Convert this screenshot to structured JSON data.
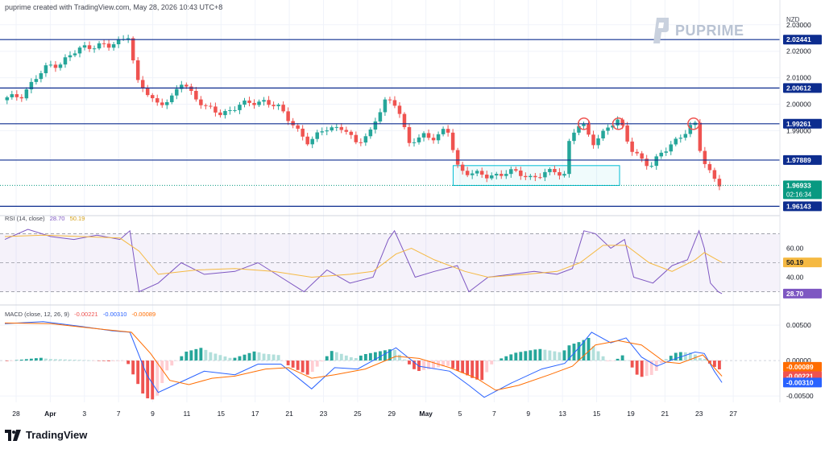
{
  "header": {
    "attribution": "puprime created with TradingView.com, May 28, 2026 10:43 UTC+8",
    "currency": "NZD"
  },
  "brand": {
    "name": "PUPRIME",
    "icon": "puprime-logo-icon"
  },
  "footer": {
    "name": "TradingView",
    "icon": "tradingview-logo-icon"
  },
  "colors": {
    "up": "#26a69a",
    "down": "#ef5350",
    "level_line": "#0d2d8f",
    "rsi_line": "#7e57c2",
    "rsi_ma": "#f5b942",
    "macd_line": "#2962ff",
    "signal_line": "#ff6d00",
    "box": "#00bcd4",
    "circle": "#ef5350",
    "last_price_bg": "#089981"
  },
  "chart_data": [
    {
      "type": "candlestick",
      "id": "price",
      "ylim": [
        1.9585,
        2.0345
      ],
      "y_ticks": [
        "2.03000",
        "2.02000",
        "2.01000",
        "2.00000",
        "1.99000"
      ],
      "y_tick_values": [
        2.03,
        2.02,
        2.01,
        2.0,
        1.99
      ],
      "x_ticks": [
        "28",
        "Apr",
        "3",
        "7",
        "9",
        "11",
        "15",
        "17",
        "21",
        "23",
        "25",
        "29",
        "May",
        "5",
        "7",
        "9",
        "13",
        "15",
        "19",
        "21",
        "23",
        "27"
      ],
      "levels": [
        {
          "value": 2.02441,
          "label": "2.02441"
        },
        {
          "value": 2.00612,
          "label": "2.00612"
        },
        {
          "value": 1.99261,
          "label": "1.99261"
        },
        {
          "value": 1.97889,
          "label": "1.97889"
        },
        {
          "value": 1.96143,
          "label": "1.96143"
        }
      ],
      "last_price": {
        "value": 1.96933,
        "label": "1.96933",
        "countdown": "02:16:34"
      },
      "consolidation_box": {
        "x_from": 0.5845,
        "x_to": 0.8015,
        "y_from": 1.9693,
        "y_to": 1.9768
      },
      "highlight_circles_at": [
        0.755,
        0.8,
        0.898
      ],
      "anchors": [
        [
          0,
          2.0015
        ],
        [
          0.025,
          2.0035
        ],
        [
          0.04,
          2.0085
        ],
        [
          0.06,
          2.0145
        ],
        [
          0.075,
          2.0155
        ],
        [
          0.09,
          2.0185
        ],
        [
          0.105,
          2.0215
        ],
        [
          0.125,
          2.0225
        ],
        [
          0.14,
          2.0215
        ],
        [
          0.16,
          2.0255
        ],
        [
          0.165,
          2.0265
        ],
        [
          0.175,
          2.0085
        ],
        [
          0.2,
          2.0005
        ],
        [
          0.22,
          2.0015
        ],
        [
          0.235,
          2.0085
        ],
        [
          0.265,
          1.9985
        ],
        [
          0.285,
          1.9965
        ],
        [
          0.31,
          1.9995
        ],
        [
          0.34,
          2.0015
        ],
        [
          0.36,
          1.9985
        ],
        [
          0.38,
          1.9925
        ],
        [
          0.4,
          1.9845
        ],
        [
          0.42,
          1.9915
        ],
        [
          0.445,
          1.9905
        ],
        [
          0.46,
          1.9855
        ],
        [
          0.48,
          1.9895
        ],
        [
          0.5,
          2.0015
        ],
        [
          0.515,
          2.0005
        ],
        [
          0.53,
          1.9845
        ],
        [
          0.55,
          1.9885
        ],
        [
          0.565,
          1.9875
        ],
        [
          0.58,
          1.9905
        ],
        [
          0.595,
          1.9755
        ],
        [
          0.63,
          1.9725
        ],
        [
          0.66,
          1.9745
        ],
        [
          0.69,
          1.9725
        ],
        [
          0.72,
          1.9745
        ],
        [
          0.735,
          1.9735
        ],
        [
          0.74,
          1.9885
        ],
        [
          0.755,
          1.9925
        ],
        [
          0.77,
          1.9855
        ],
        [
          0.79,
          1.9915
        ],
        [
          0.805,
          1.9935
        ],
        [
          0.82,
          1.9835
        ],
        [
          0.845,
          1.9755
        ],
        [
          0.86,
          1.9825
        ],
        [
          0.89,
          1.9885
        ],
        [
          0.903,
          1.9935
        ],
        [
          0.912,
          1.9805
        ],
        [
          0.925,
          1.9725
        ],
        [
          0.935,
          1.9693
        ]
      ]
    },
    {
      "type": "line",
      "id": "rsi",
      "label": "RSI (14, close)",
      "values_label": [
        "28.70",
        "50.19"
      ],
      "ylim": [
        22,
        78
      ],
      "y_ticks": [
        "60.00",
        "40.00"
      ],
      "y_tick_values": [
        60,
        40
      ],
      "bands": [
        70,
        50,
        30
      ],
      "current": [
        {
          "value": 50.19,
          "label": "50.19"
        },
        {
          "value": 28.7,
          "label": "28.70"
        }
      ],
      "series": [
        {
          "name": "RSI",
          "points": [
            [
              0,
              66
            ],
            [
              0.03,
              73
            ],
            [
              0.06,
              68
            ],
            [
              0.09,
              66
            ],
            [
              0.12,
              69
            ],
            [
              0.15,
              66
            ],
            [
              0.163,
              72
            ],
            [
              0.175,
              30
            ],
            [
              0.2,
              36
            ],
            [
              0.23,
              50
            ],
            [
              0.26,
              42
            ],
            [
              0.3,
              44
            ],
            [
              0.33,
              50
            ],
            [
              0.36,
              40
            ],
            [
              0.39,
              30
            ],
            [
              0.42,
              45
            ],
            [
              0.45,
              36
            ],
            [
              0.48,
              40
            ],
            [
              0.5,
              66
            ],
            [
              0.508,
              72
            ],
            [
              0.52,
              58
            ],
            [
              0.535,
              40
            ],
            [
              0.56,
              44
            ],
            [
              0.59,
              48
            ],
            [
              0.605,
              30
            ],
            [
              0.63,
              40
            ],
            [
              0.66,
              42
            ],
            [
              0.69,
              44
            ],
            [
              0.72,
              42
            ],
            [
              0.74,
              46
            ],
            [
              0.755,
              72
            ],
            [
              0.77,
              70
            ],
            [
              0.79,
              60
            ],
            [
              0.808,
              66
            ],
            [
              0.82,
              40
            ],
            [
              0.845,
              36
            ],
            [
              0.87,
              48
            ],
            [
              0.89,
              52
            ],
            [
              0.905,
              72
            ],
            [
              0.912,
              60
            ],
            [
              0.92,
              36
            ],
            [
              0.93,
              30
            ],
            [
              0.935,
              28.7
            ]
          ]
        },
        {
          "name": "RSI MA",
          "points": [
            [
              0,
              68
            ],
            [
              0.05,
              69
            ],
            [
              0.1,
              68
            ],
            [
              0.15,
              67
            ],
            [
              0.175,
              58
            ],
            [
              0.2,
              42
            ],
            [
              0.25,
              45
            ],
            [
              0.3,
              46
            ],
            [
              0.35,
              44
            ],
            [
              0.4,
              40
            ],
            [
              0.45,
              42
            ],
            [
              0.48,
              44
            ],
            [
              0.51,
              56
            ],
            [
              0.53,
              60
            ],
            [
              0.56,
              52
            ],
            [
              0.6,
              44
            ],
            [
              0.63,
              40
            ],
            [
              0.68,
              42
            ],
            [
              0.72,
              44
            ],
            [
              0.75,
              50
            ],
            [
              0.78,
              62
            ],
            [
              0.81,
              62
            ],
            [
              0.84,
              50
            ],
            [
              0.87,
              44
            ],
            [
              0.9,
              52
            ],
            [
              0.912,
              57
            ],
            [
              0.935,
              50.19
            ]
          ]
        }
      ]
    },
    {
      "type": "line",
      "id": "macd",
      "label": "MACD (close, 12, 26, 9)",
      "values_label": [
        "-0.00221",
        "-0.00310",
        "-0.00089"
      ],
      "ylim": [
        -0.0059,
        0.0066
      ],
      "y_ticks": [
        "0.00500",
        "0.00000",
        "-0.00500"
      ],
      "y_tick_values": [
        0.005,
        0.0,
        -0.005
      ],
      "current": [
        {
          "value": -0.00089,
          "label": "-0.00089"
        },
        {
          "value": -0.00221,
          "label": "-0.00221"
        },
        {
          "value": -0.0031,
          "label": "-0.00310"
        }
      ],
      "series": [
        {
          "name": "MACD",
          "points": [
            [
              0,
              0.0052
            ],
            [
              0.05,
              0.0055
            ],
            [
              0.1,
              0.0048
            ],
            [
              0.14,
              0.0042
            ],
            [
              0.163,
              0.004
            ],
            [
              0.185,
              -0.002
            ],
            [
              0.2,
              -0.0045
            ],
            [
              0.23,
              -0.003
            ],
            [
              0.26,
              -0.0015
            ],
            [
              0.3,
              -0.002
            ],
            [
              0.33,
              -0.0005
            ],
            [
              0.36,
              -0.0005
            ],
            [
              0.4,
              -0.004
            ],
            [
              0.43,
              -0.001
            ],
            [
              0.46,
              -0.0012
            ],
            [
              0.49,
              0.0006
            ],
            [
              0.51,
              0.0018
            ],
            [
              0.54,
              -0.0008
            ],
            [
              0.58,
              -0.0015
            ],
            [
              0.605,
              -0.0035
            ],
            [
              0.625,
              -0.0052
            ],
            [
              0.66,
              -0.0032
            ],
            [
              0.7,
              -0.0012
            ],
            [
              0.73,
              -0.0004
            ],
            [
              0.75,
              0.002
            ],
            [
              0.765,
              0.004
            ],
            [
              0.79,
              0.0025
            ],
            [
              0.81,
              0.0032
            ],
            [
              0.83,
              0.0005
            ],
            [
              0.85,
              -0.0008
            ],
            [
              0.87,
              0.0001
            ],
            [
              0.9,
              0.0012
            ],
            [
              0.912,
              0.001
            ],
            [
              0.925,
              -0.0015
            ],
            [
              0.935,
              -0.0031
            ]
          ]
        },
        {
          "name": "Signal",
          "points": [
            [
              0,
              0.0053
            ],
            [
              0.06,
              0.0052
            ],
            [
              0.12,
              0.0045
            ],
            [
              0.165,
              0.004
            ],
            [
              0.19,
              0.001
            ],
            [
              0.215,
              -0.0028
            ],
            [
              0.24,
              -0.0034
            ],
            [
              0.27,
              -0.0025
            ],
            [
              0.3,
              -0.0022
            ],
            [
              0.34,
              -0.0012
            ],
            [
              0.37,
              -0.001
            ],
            [
              0.4,
              -0.0025
            ],
            [
              0.43,
              -0.002
            ],
            [
              0.47,
              -0.0012
            ],
            [
              0.51,
              0.0006
            ],
            [
              0.54,
              0.0003
            ],
            [
              0.58,
              -0.001
            ],
            [
              0.615,
              -0.0025
            ],
            [
              0.64,
              -0.0042
            ],
            [
              0.67,
              -0.0035
            ],
            [
              0.71,
              -0.002
            ],
            [
              0.74,
              -0.0008
            ],
            [
              0.77,
              0.0022
            ],
            [
              0.8,
              0.0028
            ],
            [
              0.83,
              0.0022
            ],
            [
              0.86,
              -0.0002
            ],
            [
              0.88,
              -0.0004
            ],
            [
              0.91,
              0.0008
            ],
            [
              0.935,
              -0.00221
            ]
          ]
        },
        {
          "name": "Histogram",
          "value": -0.00089
        }
      ]
    }
  ]
}
